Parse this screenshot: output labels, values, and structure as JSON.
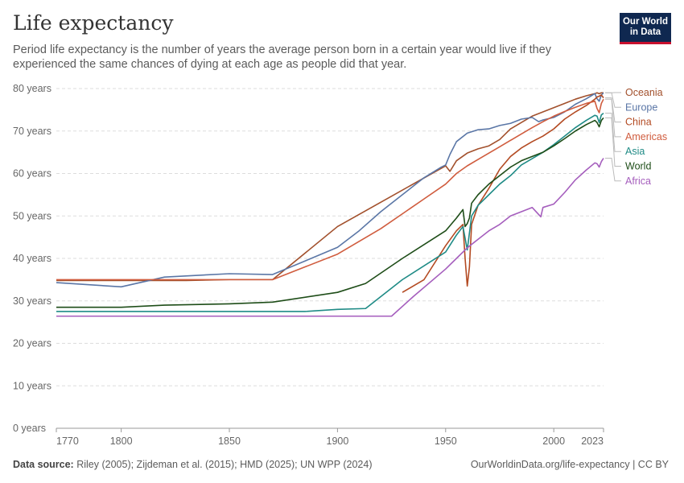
{
  "header": {
    "title": "Life expectancy",
    "subtitle": "Period life expectancy is the number of years the average person born in a certain year would live if they experienced the same chances of dying at each age as people did that year."
  },
  "logo": {
    "line1": "Our World",
    "line2": "in Data",
    "bg_color": "#0f2850",
    "accent_color": "#c8102e"
  },
  "footer": {
    "source_label": "Data source:",
    "source_text": "Riley (2005); Zijdeman et al. (2015); HMD (2025); UN WPP (2024)",
    "url_text": "OurWorldinData.org/life-expectancy | CC BY"
  },
  "chart_data": {
    "type": "line",
    "title": "Life expectancy",
    "xlabel": "",
    "ylabel": "",
    "xlim": [
      1770,
      2023
    ],
    "ylim": [
      0,
      80
    ],
    "x_ticks": [
      1770,
      1800,
      1850,
      1900,
      1950,
      2000,
      2023
    ],
    "y_ticks": [
      0,
      10,
      20,
      30,
      40,
      50,
      60,
      70,
      80
    ],
    "y_tick_suffix": " years",
    "grid": "horizontal dashed",
    "legend": "right, labels at line ends",
    "series": [
      {
        "name": "Oceania",
        "color": "#a2502c",
        "points": [
          [
            1770,
            34.8
          ],
          [
            1800,
            34.8
          ],
          [
            1830,
            34.8
          ],
          [
            1850,
            35.0
          ],
          [
            1870,
            35.0
          ],
          [
            1900,
            47.5
          ],
          [
            1950,
            61.8
          ],
          [
            1952,
            60.5
          ],
          [
            1955,
            63.0
          ],
          [
            1960,
            64.8
          ],
          [
            1965,
            65.8
          ],
          [
            1970,
            66.5
          ],
          [
            1975,
            68.0
          ],
          [
            1980,
            70.5
          ],
          [
            1985,
            72.0
          ],
          [
            1990,
            73.5
          ],
          [
            1995,
            74.5
          ],
          [
            2000,
            75.5
          ],
          [
            2005,
            76.5
          ],
          [
            2010,
            77.5
          ],
          [
            2015,
            78.3
          ],
          [
            2019,
            78.8
          ],
          [
            2020,
            79.0
          ],
          [
            2021,
            78.8
          ],
          [
            2022,
            79.0
          ],
          [
            2023,
            79.0
          ]
        ]
      },
      {
        "name": "Europe",
        "color": "#5a76a6",
        "points": [
          [
            1770,
            34.3
          ],
          [
            1800,
            33.3
          ],
          [
            1820,
            35.6
          ],
          [
            1850,
            36.4
          ],
          [
            1870,
            36.2
          ],
          [
            1900,
            42.6
          ],
          [
            1910,
            46.5
          ],
          [
            1920,
            51.0
          ],
          [
            1930,
            55.0
          ],
          [
            1940,
            59.0
          ],
          [
            1948,
            61.5
          ],
          [
            1950,
            62.0
          ],
          [
            1952,
            64.5
          ],
          [
            1955,
            67.5
          ],
          [
            1960,
            69.5
          ],
          [
            1965,
            70.3
          ],
          [
            1970,
            70.5
          ],
          [
            1975,
            71.3
          ],
          [
            1980,
            71.8
          ],
          [
            1985,
            72.8
          ],
          [
            1990,
            73.2
          ],
          [
            1993,
            72.2
          ],
          [
            1995,
            72.6
          ],
          [
            2000,
            73.2
          ],
          [
            2005,
            74.5
          ],
          [
            2010,
            76.3
          ],
          [
            2015,
            77.6
          ],
          [
            2019,
            78.8
          ],
          [
            2020,
            77.6
          ],
          [
            2021,
            77.0
          ],
          [
            2022,
            78.5
          ],
          [
            2023,
            79.0
          ]
        ]
      },
      {
        "name": "China",
        "color": "#b34a22",
        "points": [
          [
            1930,
            32.0
          ],
          [
            1940,
            35.0
          ],
          [
            1950,
            43.0
          ],
          [
            1955,
            46.5
          ],
          [
            1958,
            48.0
          ],
          [
            1959,
            40.0
          ],
          [
            1960,
            33.5
          ],
          [
            1961,
            38.0
          ],
          [
            1962,
            48.0
          ],
          [
            1965,
            52.5
          ],
          [
            1970,
            56.5
          ],
          [
            1975,
            61.0
          ],
          [
            1980,
            64.0
          ],
          [
            1985,
            66.0
          ],
          [
            1990,
            67.5
          ],
          [
            1995,
            68.8
          ],
          [
            2000,
            70.5
          ],
          [
            2005,
            72.8
          ],
          [
            2010,
            74.5
          ],
          [
            2015,
            76.0
          ],
          [
            2019,
            77.5
          ],
          [
            2020,
            78.0
          ],
          [
            2021,
            78.2
          ],
          [
            2022,
            78.5
          ],
          [
            2023,
            77.8
          ]
        ]
      },
      {
        "name": "Americas",
        "color": "#d05c3e",
        "points": [
          [
            1770,
            35.0
          ],
          [
            1800,
            35.0
          ],
          [
            1850,
            35.0
          ],
          [
            1870,
            35.0
          ],
          [
            1900,
            41.0
          ],
          [
            1920,
            47.0
          ],
          [
            1930,
            50.5
          ],
          [
            1940,
            54.0
          ],
          [
            1950,
            57.5
          ],
          [
            1955,
            60.0
          ],
          [
            1960,
            61.8
          ],
          [
            1965,
            63.3
          ],
          [
            1970,
            64.8
          ],
          [
            1975,
            66.3
          ],
          [
            1980,
            67.8
          ],
          [
            1985,
            69.3
          ],
          [
            1990,
            70.8
          ],
          [
            1995,
            72.2
          ],
          [
            2000,
            73.5
          ],
          [
            2005,
            74.6
          ],
          [
            2010,
            75.6
          ],
          [
            2015,
            76.5
          ],
          [
            2019,
            77.0
          ],
          [
            2020,
            75.3
          ],
          [
            2021,
            74.3
          ],
          [
            2022,
            76.5
          ],
          [
            2023,
            77.5
          ]
        ]
      },
      {
        "name": "Asia",
        "color": "#1f8b86",
        "points": [
          [
            1770,
            27.5
          ],
          [
            1800,
            27.5
          ],
          [
            1850,
            27.5
          ],
          [
            1885,
            27.5
          ],
          [
            1900,
            28.0
          ],
          [
            1913,
            28.2
          ],
          [
            1930,
            35.0
          ],
          [
            1950,
            41.5
          ],
          [
            1955,
            45.5
          ],
          [
            1958,
            47.5
          ],
          [
            1960,
            42.0
          ],
          [
            1961,
            46.0
          ],
          [
            1962,
            50.0
          ],
          [
            1965,
            52.5
          ],
          [
            1970,
            55.0
          ],
          [
            1975,
            57.5
          ],
          [
            1980,
            59.5
          ],
          [
            1985,
            62.0
          ],
          [
            1990,
            63.5
          ],
          [
            1995,
            65.0
          ],
          [
            2000,
            66.8
          ],
          [
            2005,
            68.8
          ],
          [
            2010,
            70.8
          ],
          [
            2015,
            72.5
          ],
          [
            2019,
            73.7
          ],
          [
            2020,
            73.5
          ],
          [
            2021,
            72.0
          ],
          [
            2022,
            73.8
          ],
          [
            2023,
            74.2
          ]
        ]
      },
      {
        "name": "World",
        "color": "#1e4d18",
        "points": [
          [
            1770,
            28.5
          ],
          [
            1800,
            28.5
          ],
          [
            1820,
            29.0
          ],
          [
            1850,
            29.3
          ],
          [
            1870,
            29.7
          ],
          [
            1900,
            32.0
          ],
          [
            1913,
            34.1
          ],
          [
            1930,
            40.0
          ],
          [
            1950,
            46.5
          ],
          [
            1955,
            49.5
          ],
          [
            1958,
            51.5
          ],
          [
            1959,
            47.5
          ],
          [
            1960,
            48.2
          ],
          [
            1961,
            49.5
          ],
          [
            1962,
            53.0
          ],
          [
            1965,
            55.0
          ],
          [
            1970,
            57.5
          ],
          [
            1975,
            59.5
          ],
          [
            1980,
            61.5
          ],
          [
            1985,
            63.0
          ],
          [
            1990,
            64.0
          ],
          [
            1995,
            65.0
          ],
          [
            2000,
            66.5
          ],
          [
            2005,
            68.2
          ],
          [
            2010,
            70.0
          ],
          [
            2015,
            71.5
          ],
          [
            2019,
            72.5
          ],
          [
            2020,
            72.0
          ],
          [
            2021,
            71.0
          ],
          [
            2022,
            72.5
          ],
          [
            2023,
            73.1
          ]
        ]
      },
      {
        "name": "Africa",
        "color": "#a55ebd",
        "points": [
          [
            1770,
            26.4
          ],
          [
            1800,
            26.4
          ],
          [
            1850,
            26.4
          ],
          [
            1900,
            26.4
          ],
          [
            1925,
            26.4
          ],
          [
            1935,
            31.0
          ],
          [
            1950,
            37.5
          ],
          [
            1955,
            40.0
          ],
          [
            1960,
            42.5
          ],
          [
            1965,
            44.5
          ],
          [
            1970,
            46.5
          ],
          [
            1975,
            48.0
          ],
          [
            1980,
            50.0
          ],
          [
            1985,
            51.0
          ],
          [
            1990,
            52.0
          ],
          [
            1994,
            49.8
          ],
          [
            1995,
            52.0
          ],
          [
            2000,
            52.8
          ],
          [
            2005,
            55.5
          ],
          [
            2010,
            58.5
          ],
          [
            2015,
            60.8
          ],
          [
            2019,
            62.5
          ],
          [
            2020,
            62.3
          ],
          [
            2021,
            61.5
          ],
          [
            2022,
            62.8
          ],
          [
            2023,
            63.6
          ]
        ]
      }
    ]
  }
}
